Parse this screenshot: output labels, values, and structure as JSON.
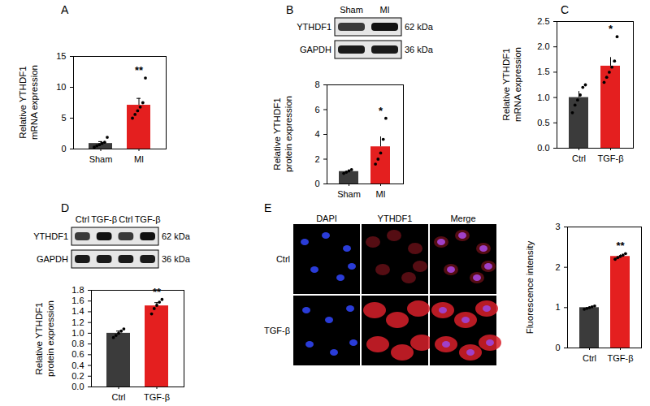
{
  "figure": {
    "panel_labels": [
      "A",
      "B",
      "C",
      "D",
      "E"
    ]
  },
  "chart_data": [
    {
      "type": "bar",
      "ylabel": "Relative YTHDF1\nmRNA expression",
      "categories": [
        "Sham",
        "MI"
      ],
      "values": [
        0.9,
        7.1
      ],
      "errors": [
        0.3,
        1.1
      ],
      "points": [
        [
          0.3,
          0.5,
          0.7,
          0.9,
          1.1,
          1.9
        ],
        [
          5.0,
          5.6,
          6.2,
          6.8,
          7.5,
          11.5
        ]
      ],
      "colors": [
        "#3b3b3b",
        "#e41f1f"
      ],
      "ylim": [
        0,
        15
      ],
      "yticks": [
        0,
        5,
        10,
        15
      ],
      "annotations": [
        {
          "category": "MI",
          "text": "**"
        }
      ]
    },
    {
      "type": "bar",
      "ylabel": "Relative YTHDF1\nprotein expression",
      "categories": [
        "Sham",
        "MI"
      ],
      "values": [
        1.0,
        3.0
      ],
      "errors": [
        0.12,
        0.8
      ],
      "points": [
        [
          0.85,
          0.95,
          1.05,
          1.15
        ],
        [
          1.6,
          2.0,
          2.5,
          3.6,
          5.3
        ]
      ],
      "colors": [
        "#3b3b3b",
        "#e41f1f"
      ],
      "ylim": [
        0,
        8
      ],
      "yticks": [
        0,
        2,
        4,
        6,
        8
      ],
      "annotations": [
        {
          "category": "MI",
          "text": "*"
        }
      ]
    },
    {
      "type": "bar",
      "ylabel": "Relative YTHDF1\nmRNA expression",
      "categories": [
        "Ctrl",
        "TGF-β"
      ],
      "values": [
        1.0,
        1.62
      ],
      "errors": [
        0.12,
        0.17
      ],
      "points": [
        [
          0.7,
          0.85,
          0.95,
          1.05,
          1.2,
          1.25
        ],
        [
          1.3,
          1.4,
          1.5,
          1.6,
          1.72,
          2.2
        ]
      ],
      "colors": [
        "#3b3b3b",
        "#e41f1f"
      ],
      "ylim": [
        0,
        2.5
      ],
      "yticks": [
        {
          "value": 0,
          "label": "0.0"
        },
        0.5,
        {
          "value": 1,
          "label": "1.0"
        },
        1.5,
        {
          "value": 2,
          "label": "2.0"
        },
        2.5
      ],
      "annotations": [
        {
          "category": "TGF-β",
          "text": "*"
        }
      ]
    },
    {
      "type": "bar",
      "ylabel": "Relative YTHDF1\nprotein expression",
      "categories": [
        "Ctrl",
        "TGF-β"
      ],
      "values": [
        1.0,
        1.51
      ],
      "errors": [
        0.04,
        0.06
      ],
      "points": [
        [
          0.92,
          0.96,
          1.0,
          1.04,
          1.08
        ],
        [
          1.36,
          1.46,
          1.52,
          1.58,
          1.63
        ]
      ],
      "colors": [
        "#3b3b3b",
        "#e41f1f"
      ],
      "ylim": [
        0,
        1.8
      ],
      "yticks": [
        {
          "value": 0,
          "label": "0.0"
        },
        0.2,
        0.4,
        0.6,
        0.8,
        {
          "value": 1,
          "label": "1.0"
        },
        1.2,
        1.4,
        1.6,
        1.8
      ],
      "annotations": [
        {
          "category": "TGF-β",
          "text": "**"
        }
      ]
    },
    {
      "type": "bar",
      "ylabel": "Fluorescence intensity",
      "categories": [
        "Ctrl",
        "TGF-β"
      ],
      "values": [
        1.0,
        2.27
      ],
      "errors": [
        0.02,
        0.04
      ],
      "points": [
        [
          0.96,
          0.98,
          1.0,
          1.02,
          1.04
        ],
        [
          2.2,
          2.24,
          2.27,
          2.3,
          2.34
        ]
      ],
      "colors": [
        "#3b3b3b",
        "#e41f1f"
      ],
      "ylim": [
        0,
        3
      ],
      "yticks": [
        0,
        1,
        2,
        3
      ],
      "annotations": [
        {
          "category": "TGF-β",
          "text": "**"
        }
      ]
    }
  ],
  "blots": [
    {
      "lanes": [
        "Sham",
        "MI"
      ],
      "rows": [
        {
          "protein": "YTHDF1",
          "size": "62 kDa"
        },
        {
          "protein": "GAPDH",
          "size": "36 kDa"
        }
      ]
    },
    {
      "lanes": [
        "Ctrl",
        "TGF-β",
        "Ctrl",
        "TGF-β"
      ],
      "rows": [
        {
          "protein": "YTHDF1",
          "size": "62 kDa"
        },
        {
          "protein": "GAPDH",
          "size": "36 kDa"
        }
      ]
    }
  ],
  "images": {
    "columns": [
      "DAPI",
      "YTHDF1",
      "Merge"
    ],
    "rows": [
      "Ctrl",
      "TGF-β"
    ]
  }
}
